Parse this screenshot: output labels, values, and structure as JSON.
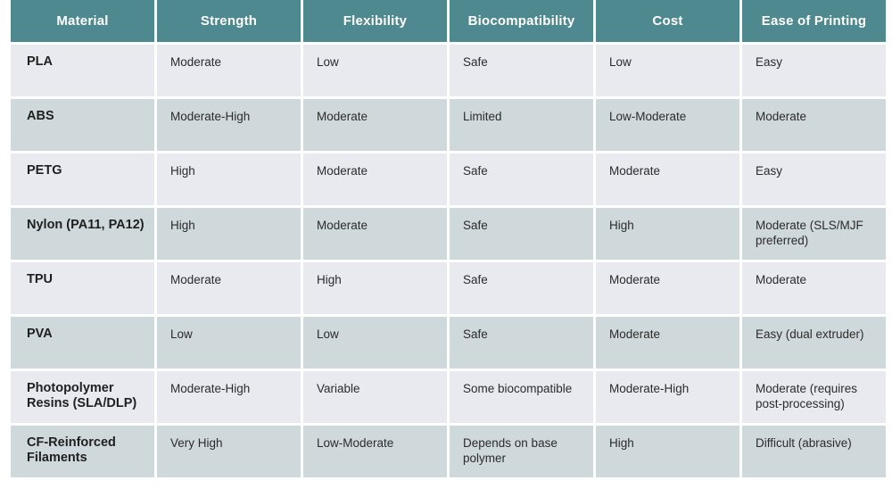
{
  "table": {
    "headers": [
      "Material",
      "Strength",
      "Flexibility",
      "Biocompatibility",
      "Cost",
      "Ease of Printing"
    ],
    "rows": [
      [
        "PLA",
        "Moderate",
        "Low",
        "Safe",
        "Low",
        "Easy"
      ],
      [
        "ABS",
        "Moderate-High",
        "Moderate",
        "Limited",
        "Low-Moderate",
        "Moderate"
      ],
      [
        "PETG",
        "High",
        "Moderate",
        "Safe",
        "Moderate",
        "Easy"
      ],
      [
        "Nylon (PA11, PA12)",
        "High",
        "Moderate",
        "Safe",
        "High",
        "Moderate (SLS/MJF preferred)"
      ],
      [
        "TPU",
        "Moderate",
        "High",
        "Safe",
        "Moderate",
        "Moderate"
      ],
      [
        "PVA",
        "Low",
        "Low",
        "Safe",
        "Moderate",
        "Easy (dual extruder)"
      ],
      [
        "Photopolymer Resins (SLA/DLP)",
        "Moderate-High",
        "Variable",
        "Some biocompatible",
        "Moderate-High",
        "Moderate (requires post-processing)"
      ],
      [
        "CF-Reinforced Filaments",
        "Very High",
        "Low-Moderate",
        "Depends on base polymer",
        "High",
        "Difficult (abrasive)"
      ]
    ]
  },
  "colors": {
    "header_bg": "#4d898f",
    "row_light": "#e8eaef",
    "row_dark": "#cfd9db"
  }
}
